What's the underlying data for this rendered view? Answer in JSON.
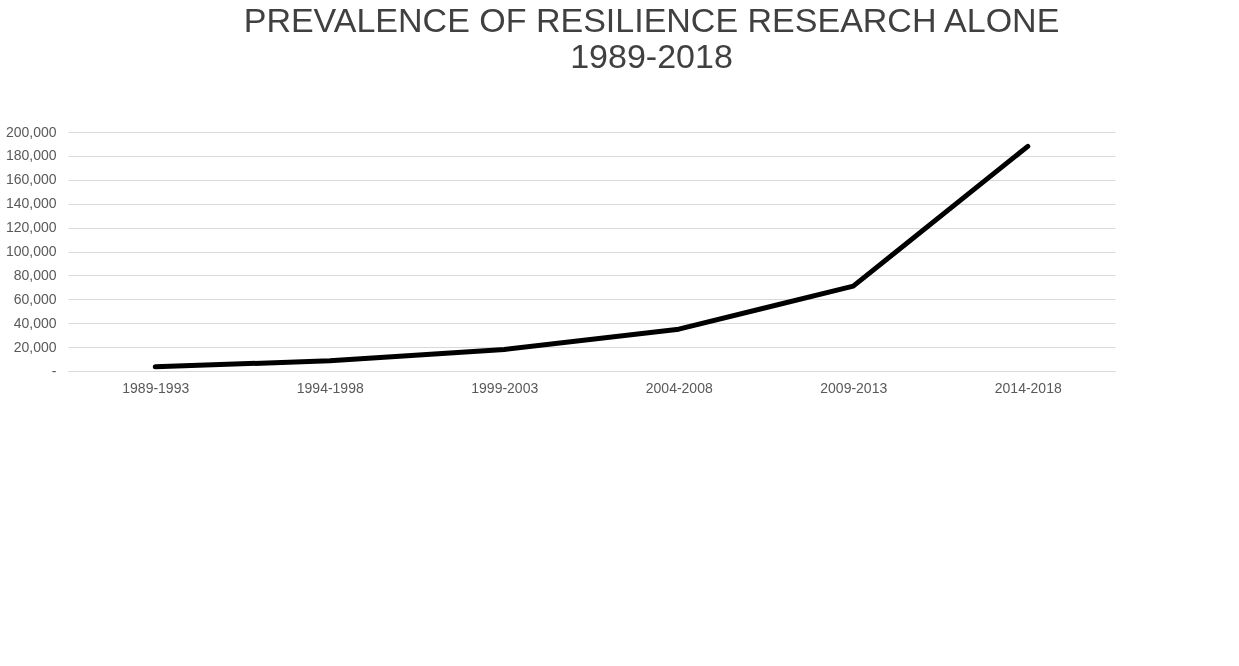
{
  "chart_data": {
    "type": "line",
    "title": [
      "PREVALENCE OF RESILIENCE RESEARCH ALONE",
      "1989-2018"
    ],
    "categories": [
      "1989-1993",
      "1994-1998",
      "1999-2003",
      "2004-2008",
      "2009-2013",
      "2014-2018"
    ],
    "series": [
      {
        "color": "#000000",
        "values": [
          3500,
          8500,
          18000,
          35000,
          71000,
          188000
        ]
      }
    ],
    "ylim": [
      0,
      200000
    ],
    "yticks": [
      {
        "value": 0,
        "label": "-"
      },
      {
        "value": 20000,
        "label": "20,000"
      },
      {
        "value": 40000,
        "label": "40,000"
      },
      {
        "value": 60000,
        "label": "60,000"
      },
      {
        "value": 80000,
        "label": "80,000"
      },
      {
        "value": 100000,
        "label": "100,000"
      },
      {
        "value": 120000,
        "label": "120,000"
      },
      {
        "value": 140000,
        "label": "140,000"
      },
      {
        "value": 160000,
        "label": "160,000"
      },
      {
        "value": 180000,
        "label": "180,000"
      },
      {
        "value": 200000,
        "label": "200,000"
      }
    ],
    "grid": "y",
    "legend": false,
    "marker": "none",
    "line_style": "solid"
  }
}
